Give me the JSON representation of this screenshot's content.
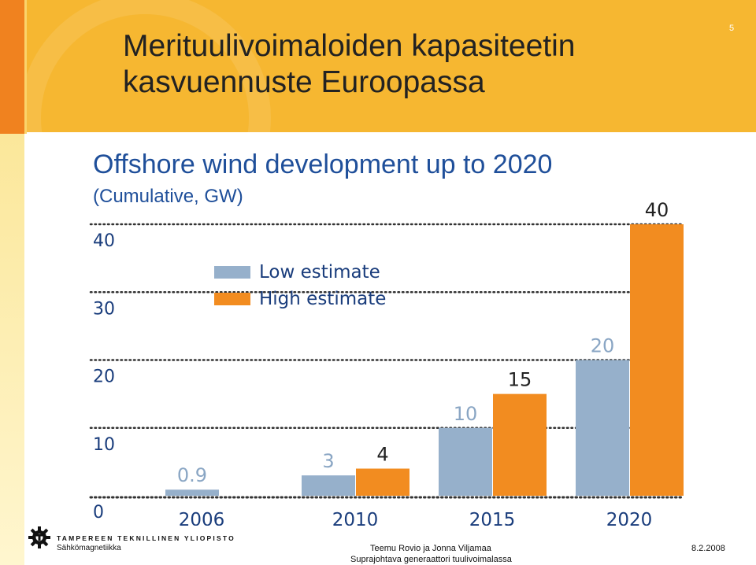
{
  "slide": {
    "title": "Merituulivoimaloiden kapasiteetin\nkasvuennuste Euroopassa",
    "page_number": "5"
  },
  "footer": {
    "university": "TAMPEREEN TEKNILLINEN YLIOPISTO",
    "department": "Sähkömagnetiikka",
    "authors": "Teemu Rovio ja Jonna Viljamaa",
    "event": "Suprajohtava generaattori tuulivoimalassa",
    "date": "8.2.2008",
    "logo_icon": "gear-logo-icon"
  },
  "colors": {
    "header": "#f6b731",
    "accent_orange": "#f0821f",
    "chart_title": "#1f4f9a",
    "low": "#96b0cb",
    "high": "#f28c20",
    "label": "#8aa6c4",
    "axis_text": "#1a3d7c"
  },
  "chart_data": {
    "type": "bar",
    "title": "Offshore wind development up to 2020",
    "subtitle": "(Cumulative, GW)",
    "categories": [
      "2006",
      "2010",
      "2015",
      "2020"
    ],
    "series": [
      {
        "name": "Low estimate",
        "values": [
          0.9,
          3,
          10,
          20
        ],
        "labels": [
          "0.9",
          "3",
          "10",
          "20"
        ],
        "color": "#96b0cb"
      },
      {
        "name": "High estimate",
        "values": [
          null,
          4,
          15,
          40
        ],
        "labels": [
          "",
          "4",
          "15",
          "40"
        ],
        "color": "#f28c20"
      }
    ],
    "yticks": [
      0,
      10,
      20,
      30,
      40
    ],
    "ylim": [
      0,
      40
    ],
    "grid": true,
    "grid_style": "dotted",
    "legend_position": "top-left"
  }
}
